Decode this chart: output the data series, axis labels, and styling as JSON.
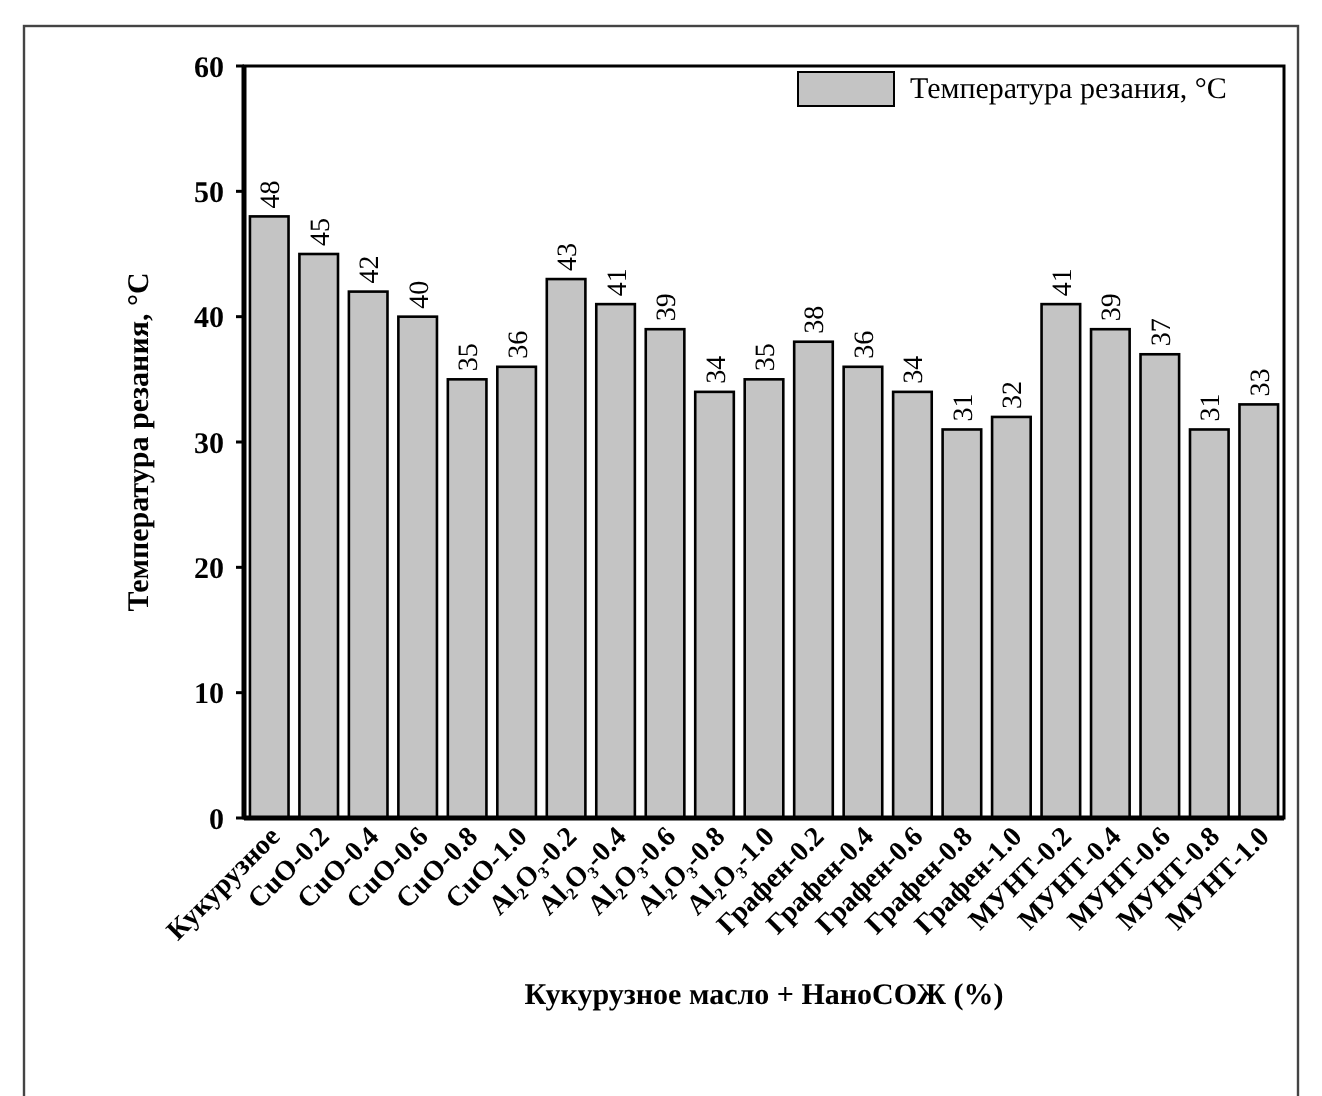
{
  "chart_data": {
    "type": "bar",
    "xlabel": "Кукурузное масло + НаноСОЖ (%)",
    "ylabel": "Температура резания, °C",
    "categories": [
      "Кукурузное",
      "CuO-0.2",
      "CuO-0.4",
      "CuO-0.6",
      "CuO-0.8",
      "CuO-1.0",
      "Al₂O₃-0.2",
      "Al₂O₃-0.4",
      "Al₂O₃-0.6",
      "Al₂O₃-0.8",
      "Al₂O₃-1.0",
      "Графен-0.2",
      "Графен-0.4",
      "Графен-0.6",
      "Графен-0.8",
      "Графен-1.0",
      "МУНТ-0.2",
      "МУНТ-0.4",
      "МУНТ-0.6",
      "МУНТ-0.8",
      "МУНТ-1.0"
    ],
    "series": [
      {
        "name": "Температура резания, °C",
        "color": "#c4c4c4",
        "values": [
          48,
          45,
          42,
          40,
          35,
          36,
          43,
          41,
          39,
          34,
          35,
          38,
          36,
          34,
          31,
          32,
          41,
          39,
          37,
          31,
          33
        ]
      }
    ],
    "ylim": [
      0,
      60
    ],
    "yticks": [
      0,
      10,
      20,
      30,
      40,
      50,
      60
    ],
    "data_labels": true,
    "legend": "top right",
    "grid": false
  }
}
